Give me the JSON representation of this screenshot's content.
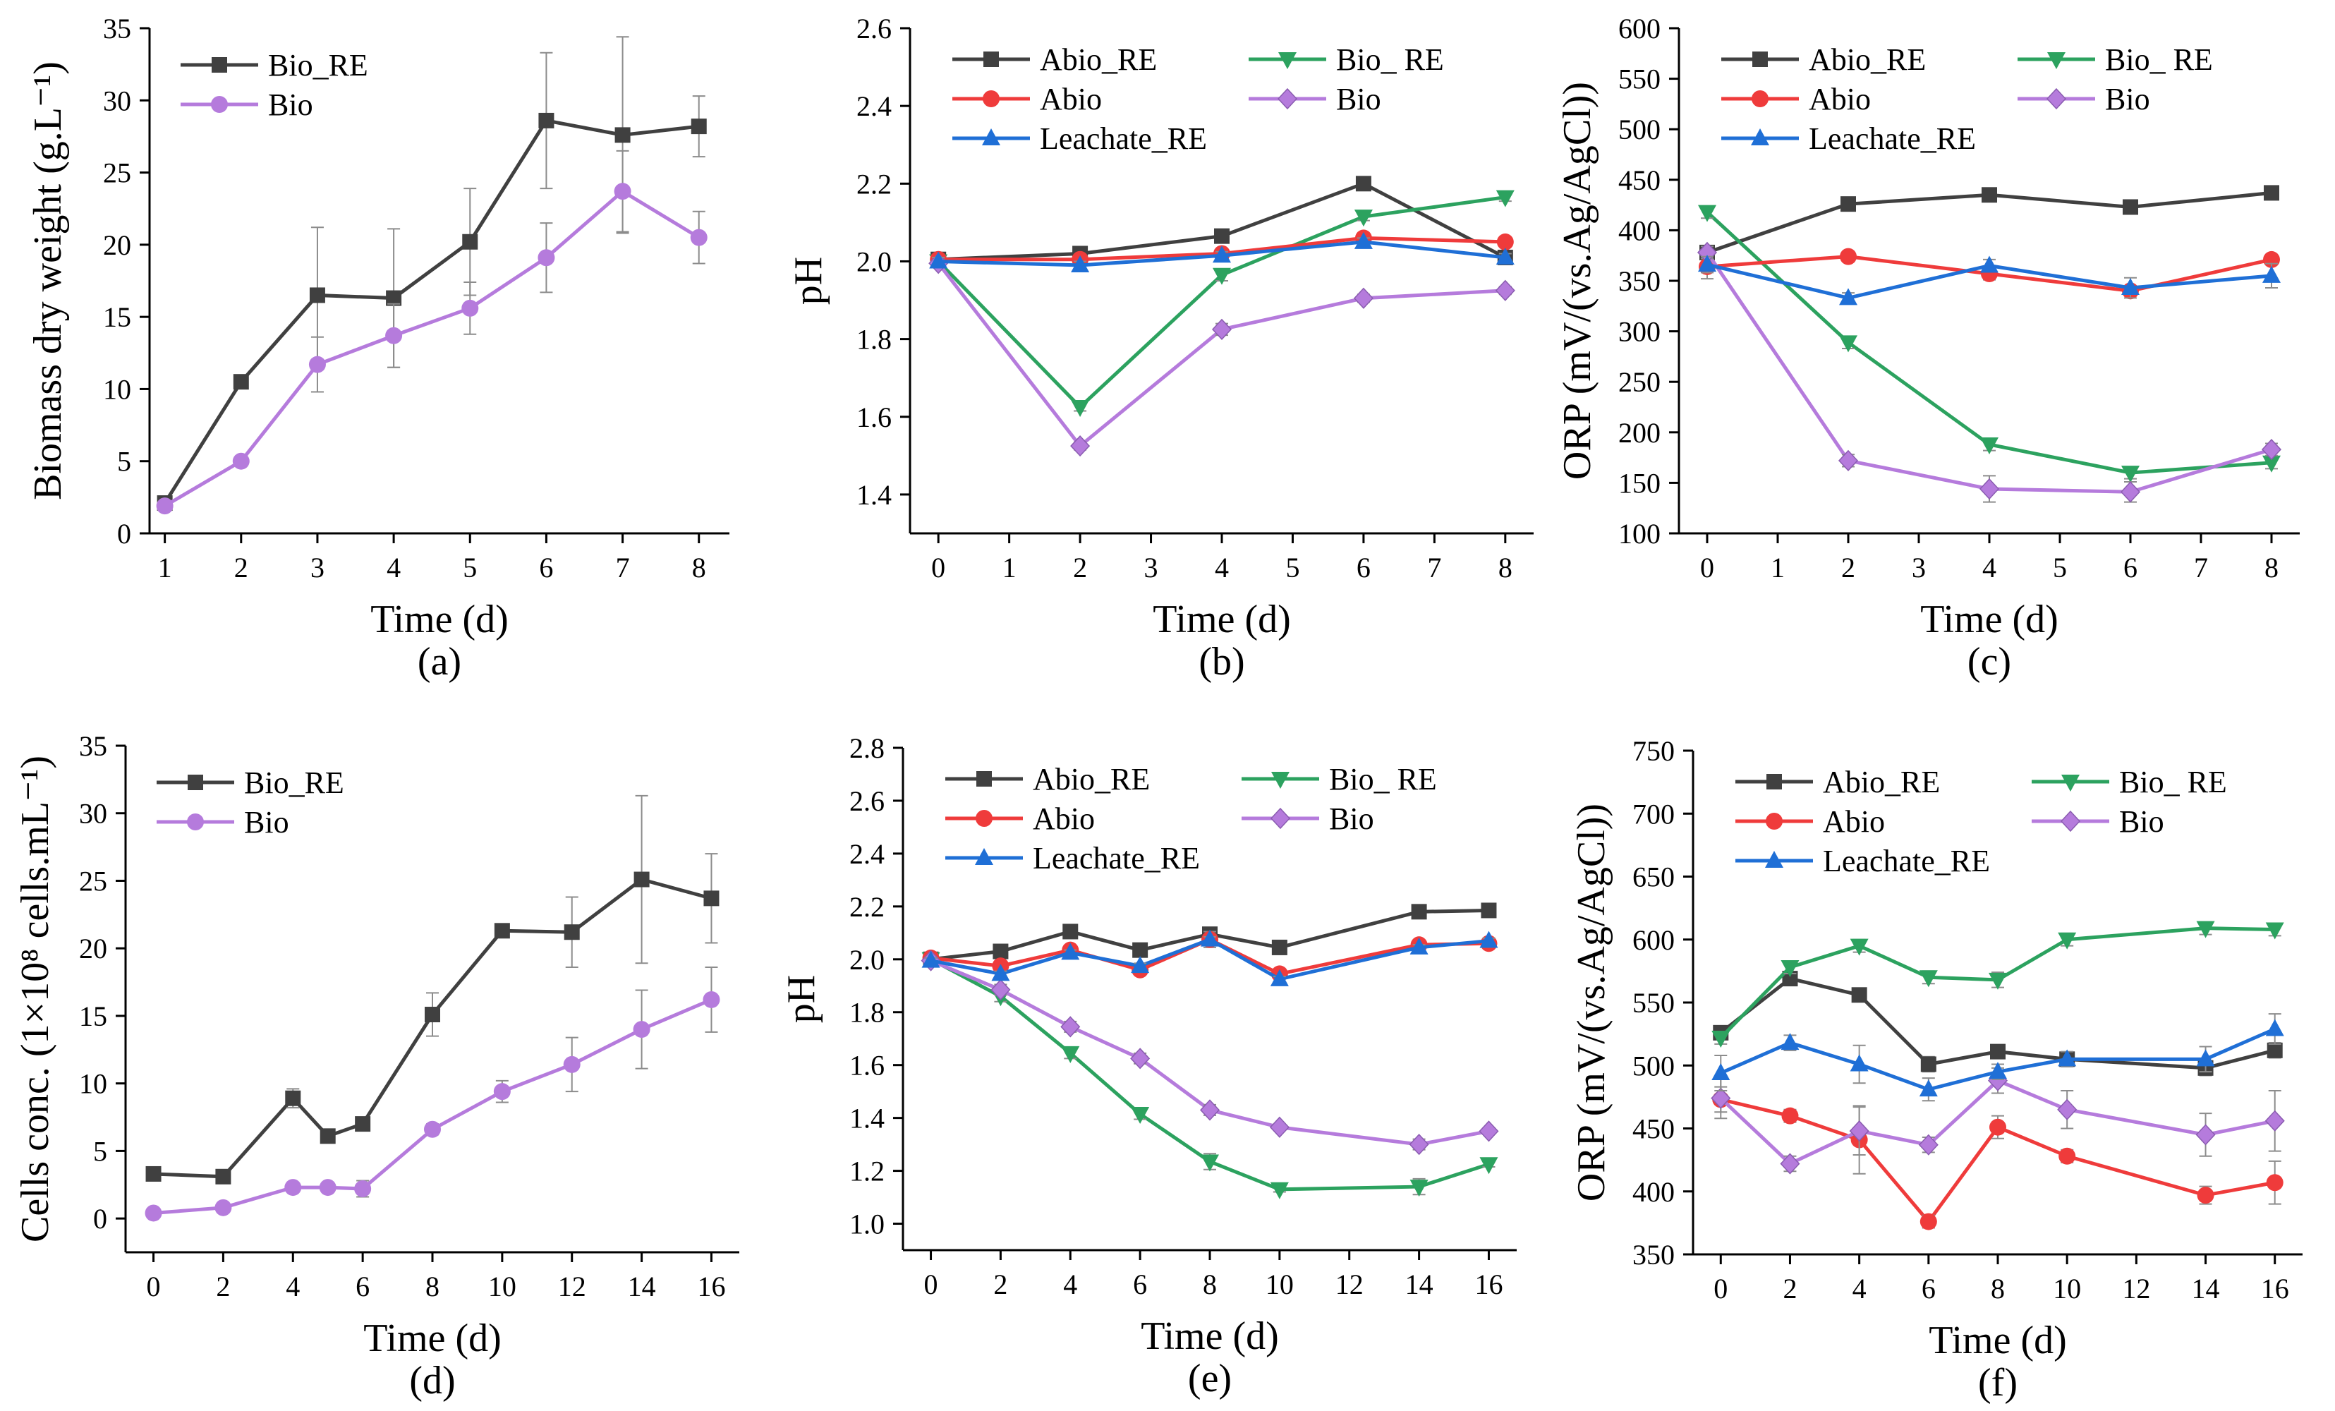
{
  "colors": {
    "Abio_RE": "#404040",
    "Bio_RE": "#404040",
    "Bio_ RE": "#2ca25f",
    "Abio": "#ef3b3b",
    "Bio": "#b57bdc",
    "Leachate_RE": "#1f6fd6",
    "error_bar": "#8c8c8c"
  },
  "chart_data": [
    {
      "type": "line",
      "panel": "(a)",
      "xlabel": "Time (d)",
      "ylabel": "Biomass dry weight (g.L⁻¹)",
      "xlim": [
        0.8,
        8.4
      ],
      "ylim": [
        0,
        35
      ],
      "xticks": [
        1,
        2,
        3,
        4,
        5,
        6,
        7,
        8
      ],
      "yticks": [
        0,
        5,
        10,
        15,
        20,
        25,
        30,
        35
      ],
      "legend": {
        "position": "top-left",
        "columns": 1
      },
      "series": [
        {
          "name": "Bio_RE",
          "marker": "square",
          "x": [
            1,
            2,
            3,
            4,
            5,
            6,
            7,
            8
          ],
          "values": [
            2.1,
            10.5,
            16.5,
            16.3,
            20.2,
            28.6,
            27.6,
            28.2
          ],
          "err": [
            0.3,
            0.4,
            4.7,
            4.8,
            3.7,
            4.7,
            6.8,
            2.1
          ]
        },
        {
          "name": "Bio",
          "marker": "circle",
          "x": [
            1,
            2,
            3,
            4,
            5,
            6,
            7,
            8
          ],
          "values": [
            1.9,
            5.0,
            11.7,
            13.7,
            15.6,
            19.1,
            23.7,
            20.5
          ],
          "err": [
            0.2,
            0.3,
            1.9,
            2.2,
            1.8,
            2.4,
            2.8,
            1.8
          ]
        }
      ]
    },
    {
      "type": "line",
      "panel": "(b)",
      "xlabel": "Time (d)",
      "ylabel": "pH",
      "xlim": [
        -0.4,
        8.4
      ],
      "ylim": [
        1.3,
        2.6
      ],
      "xticks": [
        0,
        1,
        2,
        3,
        4,
        5,
        6,
        7,
        8
      ],
      "yticks": [
        1.4,
        1.6,
        1.8,
        2.0,
        2.2,
        2.4,
        2.6
      ],
      "ytick_decimals": 1,
      "legend": {
        "position": "top",
        "columns": 2
      },
      "series": [
        {
          "name": "Abio_RE",
          "marker": "square",
          "x": [
            0,
            2,
            4,
            6,
            8
          ],
          "values": [
            2.005,
            2.02,
            2.065,
            2.2,
            2.01
          ],
          "err": [
            0.01,
            0.01,
            0.01,
            0.01,
            0.01
          ]
        },
        {
          "name": "Bio_ RE",
          "marker": "triangle-down",
          "x": [
            0,
            2,
            4,
            6,
            8
          ],
          "values": [
            2.0,
            1.625,
            1.965,
            2.115,
            2.165
          ],
          "err": [
            0.01,
            0.01,
            0.015,
            0.01,
            0.01
          ]
        },
        {
          "name": "Abio",
          "marker": "circle",
          "x": [
            0,
            2,
            4,
            6,
            8
          ],
          "values": [
            2.005,
            2.005,
            2.02,
            2.06,
            2.05
          ],
          "err": [
            0.01,
            0.01,
            0.01,
            0.01,
            0.01
          ]
        },
        {
          "name": "Bio",
          "marker": "diamond",
          "x": [
            0,
            2,
            4,
            6,
            8
          ],
          "values": [
            1.995,
            1.525,
            1.825,
            1.905,
            1.925
          ],
          "err": [
            0.01,
            0.01,
            0.015,
            0.01,
            0.01
          ]
        },
        {
          "name": "Leachate_RE",
          "marker": "triangle-up",
          "x": [
            0,
            2,
            4,
            6,
            8
          ],
          "values": [
            2.0,
            1.99,
            2.015,
            2.05,
            2.01
          ],
          "err": [
            0.01,
            0.01,
            0.01,
            0.01,
            0.01
          ]
        }
      ]
    },
    {
      "type": "line",
      "panel": "(c)",
      "xlabel": "Time (d)",
      "ylabel": "ORP (mV/(vs.Ag/AgCl))",
      "xlim": [
        -0.4,
        8.4
      ],
      "ylim": [
        100,
        600
      ],
      "xticks": [
        0,
        1,
        2,
        3,
        4,
        5,
        6,
        7,
        8
      ],
      "yticks": [
        100,
        150,
        200,
        250,
        300,
        350,
        400,
        450,
        500,
        550,
        600
      ],
      "legend": {
        "position": "top",
        "columns": 2
      },
      "series": [
        {
          "name": "Abio_RE",
          "marker": "square",
          "x": [
            0,
            2,
            4,
            6,
            8
          ],
          "values": [
            378,
            426,
            435,
            423,
            437
          ],
          "err": [
            5,
            5,
            5,
            5,
            5
          ]
        },
        {
          "name": "Bio_ RE",
          "marker": "triangle-down",
          "x": [
            0,
            2,
            4,
            6,
            8
          ],
          "values": [
            418,
            289,
            188,
            160,
            170
          ],
          "err": [
            6,
            6,
            6,
            6,
            6
          ]
        },
        {
          "name": "Abio",
          "marker": "circle",
          "x": [
            0,
            2,
            4,
            6,
            8
          ],
          "values": [
            364,
            374,
            357,
            340,
            371
          ],
          "err": [
            12,
            5,
            6,
            5,
            5
          ]
        },
        {
          "name": "Bio",
          "marker": "diamond",
          "x": [
            0,
            2,
            4,
            6,
            8
          ],
          "values": [
            378,
            172,
            144,
            141,
            183
          ],
          "err": [
            6,
            6,
            13,
            10,
            6
          ]
        },
        {
          "name": "Leachate_RE",
          "marker": "triangle-up",
          "x": [
            0,
            2,
            4,
            6,
            8
          ],
          "values": [
            366,
            333,
            365,
            343,
            355
          ],
          "err": [
            8,
            5,
            6,
            10,
            12
          ]
        }
      ]
    },
    {
      "type": "line",
      "panel": "(d)",
      "xlabel": "Time (d)",
      "ylabel": "Cells conc. (1×10⁸ cells.mL⁻¹)",
      "xlim": [
        -0.8,
        16.8
      ],
      "ylim": [
        -2.5,
        35
      ],
      "xticks": [
        0,
        2,
        4,
        6,
        8,
        10,
        12,
        14,
        16
      ],
      "yticks": [
        0,
        5,
        10,
        15,
        20,
        25,
        30,
        35
      ],
      "legend": {
        "position": "top-left",
        "columns": 1
      },
      "series": [
        {
          "name": "Bio_RE",
          "marker": "square",
          "x": [
            0,
            2,
            4,
            5,
            6,
            8,
            10,
            12,
            14,
            16
          ],
          "values": [
            3.3,
            3.1,
            8.9,
            6.1,
            7.0,
            15.1,
            21.3,
            21.2,
            25.1,
            23.7
          ],
          "err": [
            0.2,
            0.2,
            0.7,
            0.3,
            0.3,
            1.6,
            0.5,
            2.6,
            6.2,
            3.3
          ]
        },
        {
          "name": "Bio",
          "marker": "circle",
          "x": [
            0,
            2,
            4,
            5,
            6,
            8,
            10,
            12,
            14,
            16
          ],
          "values": [
            0.4,
            0.8,
            2.3,
            2.3,
            2.2,
            6.6,
            9.4,
            11.4,
            14.0,
            16.2
          ],
          "err": [
            0.1,
            0.2,
            0.3,
            0.3,
            0.6,
            0.4,
            0.8,
            2.0,
            2.9,
            2.4
          ]
        }
      ]
    },
    {
      "type": "line",
      "panel": "(e)",
      "xlabel": "Time (d)",
      "ylabel": "pH",
      "xlim": [
        -0.8,
        16.8
      ],
      "ylim": [
        0.9,
        2.8
      ],
      "xticks": [
        0,
        2,
        4,
        6,
        8,
        10,
        12,
        14,
        16
      ],
      "yticks": [
        1.0,
        1.2,
        1.4,
        1.6,
        1.8,
        2.0,
        2.2,
        2.4,
        2.6,
        2.8
      ],
      "ytick_decimals": 1,
      "legend": {
        "position": "top",
        "columns": 2
      },
      "series": [
        {
          "name": "Abio_RE",
          "marker": "square",
          "x": [
            0,
            2,
            4,
            6,
            8,
            10,
            14,
            16
          ],
          "values": [
            2.0,
            2.03,
            2.105,
            2.035,
            2.095,
            2.045,
            2.18,
            2.185
          ],
          "err": [
            0.01,
            0.01,
            0.01,
            0.01,
            0.01,
            0.01,
            0.01,
            0.01
          ]
        },
        {
          "name": "Bio_ RE",
          "marker": "triangle-down",
          "x": [
            0,
            2,
            4,
            6,
            8,
            10,
            14,
            16
          ],
          "values": [
            2.0,
            1.86,
            1.645,
            1.415,
            1.235,
            1.13,
            1.14,
            1.225
          ],
          "err": [
            0.01,
            0.02,
            0.02,
            0.02,
            0.03,
            0.01,
            0.03,
            0.01
          ]
        },
        {
          "name": "Abio",
          "marker": "circle",
          "x": [
            0,
            2,
            4,
            6,
            8,
            10,
            14,
            16
          ],
          "values": [
            2.005,
            1.975,
            2.035,
            1.96,
            2.075,
            1.945,
            2.055,
            2.06
          ],
          "err": [
            0.01,
            0.01,
            0.01,
            0.01,
            0.03,
            0.01,
            0.01,
            0.01
          ]
        },
        {
          "name": "Bio",
          "marker": "diamond",
          "x": [
            0,
            2,
            4,
            6,
            8,
            10,
            14,
            16
          ],
          "values": [
            1.995,
            1.885,
            1.745,
            1.625,
            1.43,
            1.365,
            1.3,
            1.35
          ],
          "err": [
            0.01,
            0.02,
            0.02,
            0.02,
            0.02,
            0.01,
            0.02,
            0.01
          ]
        },
        {
          "name": "Leachate_RE",
          "marker": "triangle-up",
          "x": [
            0,
            2,
            4,
            6,
            8,
            10,
            14,
            16
          ],
          "values": [
            1.995,
            1.945,
            2.025,
            1.975,
            2.075,
            1.925,
            2.045,
            2.07
          ],
          "err": [
            0.01,
            0.01,
            0.01,
            0.01,
            0.01,
            0.01,
            0.01,
            0.01
          ]
        }
      ]
    },
    {
      "type": "line",
      "panel": "(f)",
      "xlabel": "Time (d)",
      "ylabel": "ORP (mV/(vs.Ag/AgCl))",
      "xlim": [
        -0.8,
        16.8
      ],
      "ylim": [
        350,
        750
      ],
      "xticks": [
        0,
        2,
        4,
        6,
        8,
        10,
        12,
        14,
        16
      ],
      "yticks": [
        350,
        400,
        450,
        500,
        550,
        600,
        650,
        700,
        750
      ],
      "legend": {
        "position": "top",
        "columns": 2
      },
      "series": [
        {
          "name": "Abio_RE",
          "marker": "square",
          "x": [
            0,
            2,
            4,
            6,
            8,
            10,
            14,
            16
          ],
          "values": [
            526,
            569,
            556,
            501,
            511,
            505,
            498,
            512
          ],
          "err": [
            5,
            5,
            5,
            6,
            5,
            5,
            6,
            6
          ]
        },
        {
          "name": "Bio_ RE",
          "marker": "triangle-down",
          "x": [
            0,
            2,
            4,
            6,
            8,
            10,
            14,
            16
          ],
          "values": [
            522,
            578,
            595,
            570,
            568,
            600,
            609,
            608
          ],
          "err": [
            5,
            5,
            5,
            5,
            6,
            5,
            5,
            5
          ]
        },
        {
          "name": "Abio",
          "marker": "circle",
          "x": [
            0,
            2,
            4,
            6,
            8,
            10,
            14,
            16
          ],
          "values": [
            473,
            460,
            441,
            376,
            451,
            428,
            397,
            407
          ],
          "err": [
            10,
            5,
            27,
            5,
            9,
            5,
            7,
            17
          ]
        },
        {
          "name": "Bio",
          "marker": "diamond",
          "x": [
            0,
            2,
            4,
            6,
            8,
            10,
            14,
            16
          ],
          "values": [
            474,
            422,
            448,
            437,
            488,
            465,
            445,
            456
          ],
          "err": [
            16,
            6,
            19,
            6,
            10,
            15,
            17,
            24
          ]
        },
        {
          "name": "Leachate_RE",
          "marker": "triangle-up",
          "x": [
            0,
            2,
            4,
            6,
            8,
            10,
            14,
            16
          ],
          "values": [
            494,
            518,
            501,
            481,
            495,
            505,
            505,
            529
          ],
          "err": [
            14,
            6,
            15,
            9,
            6,
            6,
            10,
            12
          ]
        }
      ]
    }
  ]
}
